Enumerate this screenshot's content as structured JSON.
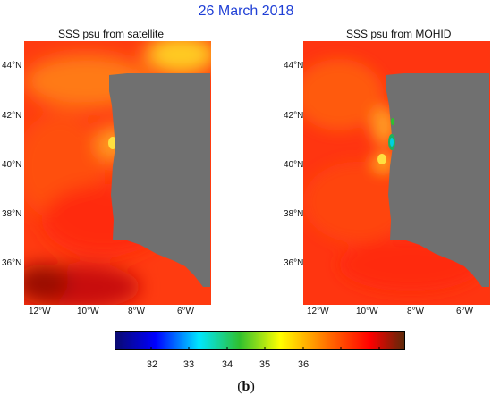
{
  "title": "26 March 2018",
  "panels": [
    {
      "title": "SSS psu from satellite",
      "lat_labels": [
        "44°N",
        "42°N",
        "40°N",
        "38°N",
        "36°N"
      ],
      "lon_labels": [
        "12°W",
        "10°W",
        "8°W",
        "6°W"
      ]
    },
    {
      "title": "SSS psu from MOHID",
      "lat_labels": [
        "44°N",
        "42°N",
        "40°N",
        "38°N",
        "36°N"
      ],
      "lon_labels": [
        "12°W",
        "10°W",
        "8°W",
        "6°W"
      ]
    }
  ],
  "colorbar": {
    "ticks": [
      "32",
      "33",
      "34",
      "35",
      "36"
    ],
    "colors": [
      "#0a0a6e",
      "#0000ff",
      "#00e6ff",
      "#2fc02f",
      "#ffff00",
      "#ff6a00",
      "#ff0000",
      "#5a2a0a"
    ]
  },
  "caption": {
    "open": "(",
    "letter": "b",
    "close": ")"
  },
  "colors": {
    "land": "#707070",
    "title": "#1f3fd6"
  }
}
